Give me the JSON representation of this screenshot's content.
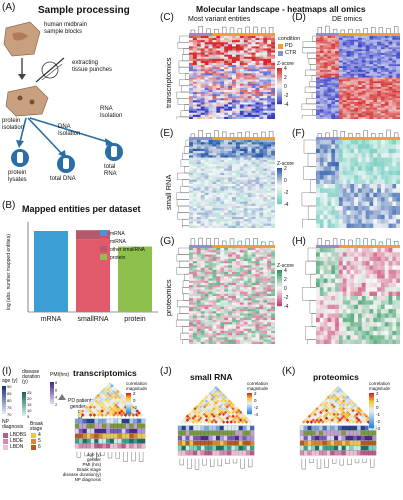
{
  "panel_letters": {
    "a": "(A)",
    "b": "(B)",
    "c": "(C)",
    "d": "(D)",
    "e": "(E)",
    "f": "(F)",
    "g": "(G)",
    "h": "(H)",
    "i": "(I)",
    "j": "(J)",
    "k": "(K)"
  },
  "sample_processing": {
    "title": "Sample processing",
    "blocks_label": "human midbrain\nsample blocks",
    "punch_label": "extracting\ntissue punches",
    "protein_isolation": "protein\nisolation",
    "dna_isolation": "DNA\nIsolation",
    "rna_isolation": "RNA\nIsolation",
    "protein_lysates": "protein\nlysates",
    "total_dna": "total DNA",
    "total_rna": "total\nRNA"
  },
  "mapped_entities": {
    "title": "Mapped entities per dataset"
  },
  "chart_data": {
    "type": "bar",
    "stacked": true,
    "categories": [
      "mRNA",
      "smallRNA",
      "protein"
    ],
    "ylabel": "log (abs. number mapped entities)",
    "series": [
      {
        "name": "mRNA",
        "color": "#3b9fd6",
        "values": [
          9.9,
          0,
          0
        ]
      },
      {
        "name": "miRNA",
        "color": "#e05a6c",
        "values": [
          0,
          8.9,
          0
        ]
      },
      {
        "name": "other smallRNA",
        "color": "#b55a6a",
        "values": [
          0,
          1.1,
          0
        ]
      },
      {
        "name": "protein",
        "color": "#8dc04d",
        "values": [
          0,
          0,
          8.0
        ]
      }
    ],
    "ylim": [
      0,
      11
    ],
    "grid": false,
    "legend": "top-right"
  },
  "molecular": {
    "title": "Molecular landscape - heatmaps all omics",
    "most_variant": "Most variant entities",
    "de_omics": "DE omics",
    "row_transcriptomics": "transcriptomics",
    "row_small_rna": "small RNA",
    "row_proteomics": "proteomics",
    "condition_title": "condition",
    "condition_pd": "PD",
    "condition_ctr": "CTR",
    "pd_color": "#f0a033",
    "ctr_color": "#8d90c8",
    "zscore_c": {
      "title": "Z-score",
      "ticks": [
        "4",
        "2",
        "0",
        "-2",
        "-4"
      ]
    },
    "zscore_e": {
      "title": "Z-score",
      "ticks": [
        "2",
        "0",
        "-2",
        "-4"
      ]
    },
    "zscore_g": {
      "title": "Z-score",
      "ticks": [
        "4",
        "2",
        "0",
        "-2",
        "-4"
      ]
    }
  },
  "correlation": {
    "transcriptomics": "transcriptomics",
    "small_rna": "small RNA",
    "proteomics": "proteomics",
    "cbar_i": {
      "title": "correlation\nmagnitude",
      "ticks": [
        "2",
        "0",
        "-2",
        "-4"
      ]
    },
    "cbar_j": {
      "title": "correlation\nmagnitude",
      "ticks": [
        "2",
        "0",
        "-2",
        "-4"
      ]
    },
    "cbar_k": {
      "title": "correlation\nmagnitude",
      "ticks": [
        "2",
        "1",
        "0",
        "-1",
        "-2",
        "-3"
      ]
    },
    "row_labels": [
      "age (y)",
      "gender",
      "PMI (hrs)",
      "Braak stage",
      "disease duration(y)",
      "NP diagnosis"
    ],
    "legend": {
      "age_title": "age (y)",
      "age_ticks": [
        "90",
        "85",
        "80",
        "75",
        "70"
      ],
      "duration_title": "disease\nduration\n(y)",
      "duration_ticks": [
        "25",
        "20",
        "15",
        "10",
        "5"
      ],
      "pmi_title": "PMI(hrs)",
      "pmi_ticks": [
        "8",
        "6",
        "4",
        "2"
      ],
      "pd_patients": "PD patients",
      "gender_title": "gender",
      "gender_f": "F",
      "gender_m": "M",
      "np_title": "NP\ndiagnosis",
      "np_items": [
        "LBDBS",
        "LBDE",
        "LBDN"
      ],
      "braak_title": "Braak\nstage",
      "braak_items": [
        "4",
        "5",
        "6"
      ]
    }
  }
}
